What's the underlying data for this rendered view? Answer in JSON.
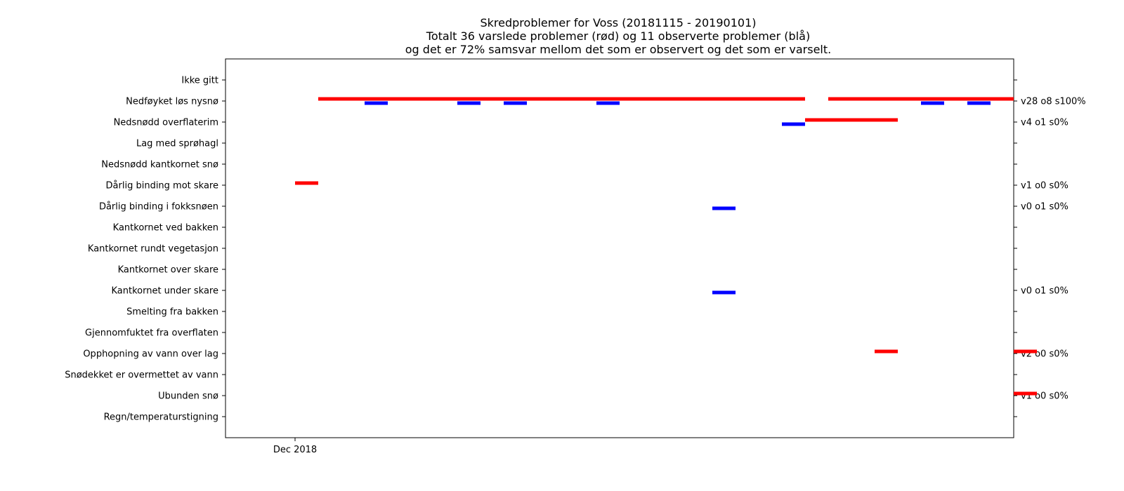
{
  "chart_data": {
    "type": "timeline",
    "title_lines": [
      "Skredproblemer for Voss (20181115 - 20190101)",
      "Totalt 36 varslede problemer (rød) og 11 observerte problemer (blå)",
      "og det er 72% samsvar mellom det som er observert og det som er varselt."
    ],
    "x_range": [
      "2018-11-28",
      "2019-01-01"
    ],
    "x_ticks": [
      {
        "date": "2018-12-01",
        "label": "Dec 2018"
      }
    ],
    "categories": [
      "Ikke gitt",
      "Nedføyket løs nysnø",
      "Nedsnødd overflaterim",
      "Lag med sprøhagl",
      "Nedsnødd kantkornet snø",
      "Dårlig binding mot skare",
      "Dårlig binding i fokksnøen",
      "Kantkornet ved bakken",
      "Kantkornet rundt vegetasjon",
      "Kantkornet over skare",
      "Kantkornet under skare",
      "Smelting fra bakken",
      "Gjennomfuktet fra overflaten",
      "Opphopning av vann over lag",
      "Snødekket er overmettet av vann",
      "Ubunden snø",
      "Regn/temperaturstigning"
    ],
    "right_labels": [
      "",
      "v28 o8 s100%",
      "v4 o1 s0%",
      "",
      "",
      "v1 o0 s0%",
      "v0 o1 s0%",
      "",
      "",
      "",
      "v0 o1 s0%",
      "",
      "",
      "v2 o0 s0%",
      "",
      "v1 o0 s0%",
      ""
    ],
    "series": [
      {
        "name": "varslet",
        "color": "#ff0000",
        "segments": [
          {
            "category": "Nedføyket løs nysnø",
            "start": "2018-12-02",
            "end": "2018-12-23"
          },
          {
            "category": "Nedføyket løs nysnø",
            "start": "2018-12-24",
            "end": "2019-01-01"
          },
          {
            "category": "Nedsnødd overflaterim",
            "start": "2018-12-23",
            "end": "2018-12-27"
          },
          {
            "category": "Dårlig binding mot skare",
            "start": "2018-12-01",
            "end": "2018-12-02"
          },
          {
            "category": "Opphopning av vann over lag",
            "start": "2018-12-26",
            "end": "2018-12-27"
          },
          {
            "category": "Opphopning av vann over lag",
            "start": "2019-01-01",
            "end": "2019-01-02"
          },
          {
            "category": "Ubunden snø",
            "start": "2019-01-01",
            "end": "2019-01-02"
          }
        ]
      },
      {
        "name": "observert",
        "color": "#0000ff",
        "segments": [
          {
            "category": "Nedføyket løs nysnø",
            "start": "2018-12-04",
            "end": "2018-12-05"
          },
          {
            "category": "Nedføyket løs nysnø",
            "start": "2018-12-08",
            "end": "2018-12-09"
          },
          {
            "category": "Nedføyket løs nysnø",
            "start": "2018-12-10",
            "end": "2018-12-11"
          },
          {
            "category": "Nedføyket løs nysnø",
            "start": "2018-12-14",
            "end": "2018-12-15"
          },
          {
            "category": "Nedføyket løs nysnø",
            "start": "2018-12-28",
            "end": "2018-12-29"
          },
          {
            "category": "Nedføyket løs nysnø",
            "start": "2018-12-30",
            "end": "2018-12-31"
          },
          {
            "category": "Nedsnødd overflaterim",
            "start": "2018-12-22",
            "end": "2018-12-23"
          },
          {
            "category": "Dårlig binding i fokksnøen",
            "start": "2018-12-19",
            "end": "2018-12-20"
          },
          {
            "category": "Kantkornet under skare",
            "start": "2018-12-19",
            "end": "2018-12-20"
          }
        ]
      }
    ]
  }
}
